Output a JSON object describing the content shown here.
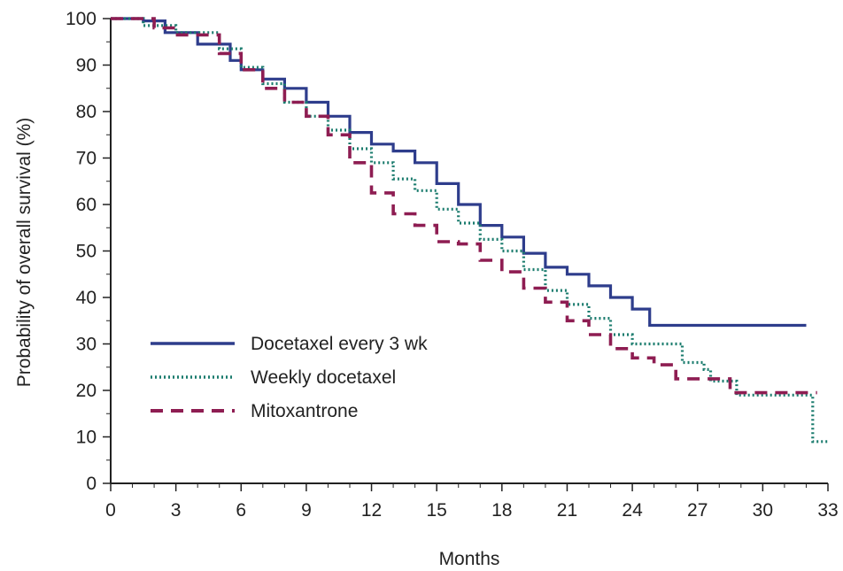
{
  "chart_data": {
    "type": "line",
    "title": "",
    "xlabel": "Months",
    "ylabel": "Probability of overall survival (%)",
    "xlim": [
      0,
      33
    ],
    "ylim": [
      0,
      100
    ],
    "x_ticks": [
      "0",
      "3",
      "6",
      "9",
      "12",
      "15",
      "18",
      "21",
      "24",
      "27",
      "30",
      "33"
    ],
    "y_ticks": [
      "0",
      "10",
      "20",
      "30",
      "40",
      "50",
      "60",
      "70",
      "80",
      "90",
      "100"
    ],
    "grid": false,
    "legend_position": "lower-left",
    "series": [
      {
        "name": "Docetaxel every 3 wk",
        "color": "#2e3d8c",
        "style": "solid",
        "points": [
          [
            0,
            100
          ],
          [
            1.5,
            99.5
          ],
          [
            2.5,
            97
          ],
          [
            4,
            94.5
          ],
          [
            5.5,
            91
          ],
          [
            6,
            89
          ],
          [
            7,
            87
          ],
          [
            8,
            85
          ],
          [
            9,
            82
          ],
          [
            10,
            79
          ],
          [
            11,
            75.5
          ],
          [
            12,
            73
          ],
          [
            13,
            71.5
          ],
          [
            14,
            69
          ],
          [
            15,
            64.5
          ],
          [
            16,
            60
          ],
          [
            17,
            55.5
          ],
          [
            18,
            53
          ],
          [
            19,
            49.5
          ],
          [
            20,
            46.5
          ],
          [
            21,
            45
          ],
          [
            22,
            42.5
          ],
          [
            23,
            40
          ],
          [
            24,
            37.5
          ],
          [
            24.8,
            34
          ],
          [
            32,
            34
          ]
        ]
      },
      {
        "name": "Weekly docetaxel",
        "color": "#1b7c6e",
        "style": "dotted",
        "points": [
          [
            0,
            100
          ],
          [
            1.5,
            98.5
          ],
          [
            3,
            97
          ],
          [
            5,
            93.5
          ],
          [
            6,
            89.5
          ],
          [
            7,
            86
          ],
          [
            8,
            82
          ],
          [
            9,
            79
          ],
          [
            10,
            76
          ],
          [
            11,
            72
          ],
          [
            12,
            69
          ],
          [
            13,
            65.5
          ],
          [
            14,
            63
          ],
          [
            15,
            59
          ],
          [
            16,
            56
          ],
          [
            17,
            52.5
          ],
          [
            18,
            50
          ],
          [
            19,
            46
          ],
          [
            20,
            41.5
          ],
          [
            21,
            38.5
          ],
          [
            22,
            35.5
          ],
          [
            23,
            32
          ],
          [
            24,
            30
          ],
          [
            26,
            30
          ],
          [
            26.3,
            26
          ],
          [
            27.3,
            24.5
          ],
          [
            27.6,
            22
          ],
          [
            28.8,
            19
          ],
          [
            32.2,
            19
          ],
          [
            32.3,
            9
          ],
          [
            33,
            9
          ]
        ]
      },
      {
        "name": "Mitoxantrone",
        "color": "#8e1d52",
        "style": "dashed",
        "points": [
          [
            0,
            100
          ],
          [
            2,
            98
          ],
          [
            3,
            96.5
          ],
          [
            5,
            92.5
          ],
          [
            6,
            89
          ],
          [
            7,
            85
          ],
          [
            8,
            82
          ],
          [
            9,
            79
          ],
          [
            10,
            75
          ],
          [
            11,
            69
          ],
          [
            12,
            62.5
          ],
          [
            13,
            58
          ],
          [
            14,
            55.5
          ],
          [
            15,
            52
          ],
          [
            16,
            51.5
          ],
          [
            17,
            48
          ],
          [
            18,
            45.5
          ],
          [
            19,
            42
          ],
          [
            20,
            39
          ],
          [
            21,
            35
          ],
          [
            22,
            32
          ],
          [
            23,
            29
          ],
          [
            24,
            27
          ],
          [
            25,
            25.5
          ],
          [
            26,
            22.5
          ],
          [
            28,
            22.5
          ],
          [
            28.5,
            19.5
          ],
          [
            32.5,
            19.5
          ]
        ]
      }
    ]
  }
}
